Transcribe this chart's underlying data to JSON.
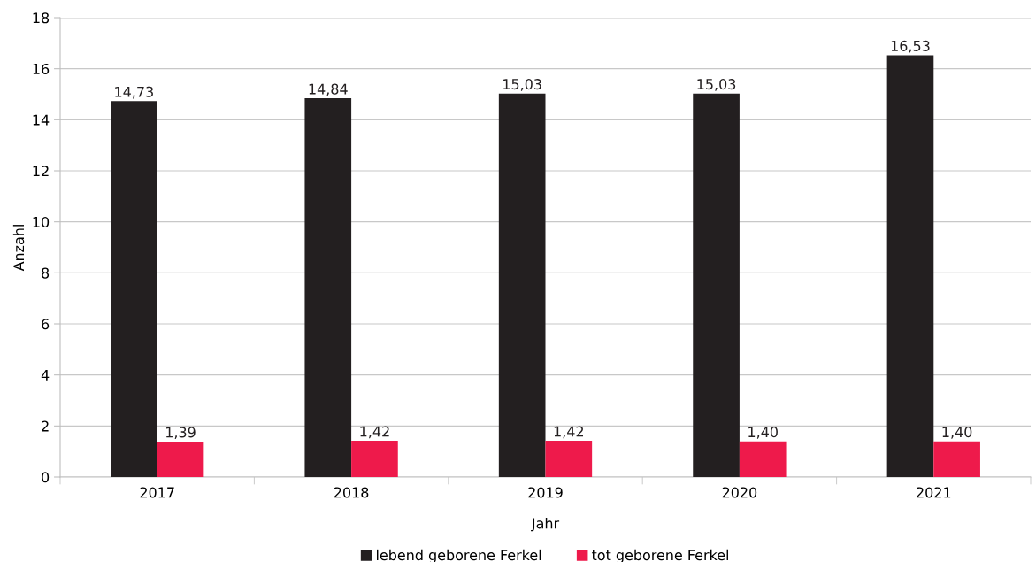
{
  "chart_data": {
    "type": "bar",
    "xlabel": "Jahr",
    "ylabel": "Anzahl",
    "categories": [
      "2017",
      "2018",
      "2019",
      "2020",
      "2021"
    ],
    "series": [
      {
        "name": "lebend geborene Ferkel",
        "color": "#231f20",
        "values": [
          14.73,
          14.84,
          15.03,
          15.03,
          16.53
        ],
        "value_labels": [
          "14,73",
          "14,84",
          "15,03",
          "15,03",
          "16,53"
        ]
      },
      {
        "name": "tot geborene Ferkel",
        "color": "#ee1a4b",
        "values": [
          1.39,
          1.42,
          1.42,
          1.4,
          1.4
        ],
        "value_labels": [
          "1,39",
          "1,42",
          "1,42",
          "1,40",
          "1,40"
        ]
      }
    ],
    "ylim": [
      0,
      18
    ],
    "yticks": [
      0,
      2,
      4,
      6,
      8,
      10,
      12,
      14,
      16,
      18
    ],
    "grid": "y",
    "legend": "bottom"
  }
}
